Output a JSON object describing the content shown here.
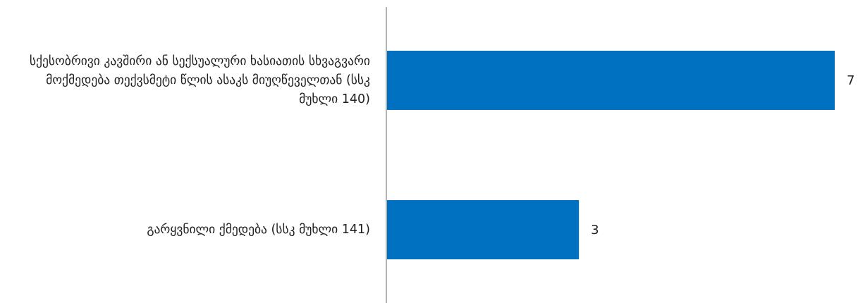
{
  "chart_data": {
    "type": "bar",
    "orientation": "horizontal",
    "categories": [
      "სქესობრივი კავშირი ან სექსუალური ხასიათის სხვაგვარი მოქმედება თექვსმეტი წლის ასაკს მიუღწეველთან (სსკ მუხლი 140)",
      "გარყვნილი ქმედება (სსკ მუხლი 141)"
    ],
    "values": [
      7,
      3
    ],
    "xlim": [
      0,
      7
    ],
    "grid": false,
    "legend": "none",
    "bar_color": "#0070c0",
    "axis_color": "#808080"
  }
}
